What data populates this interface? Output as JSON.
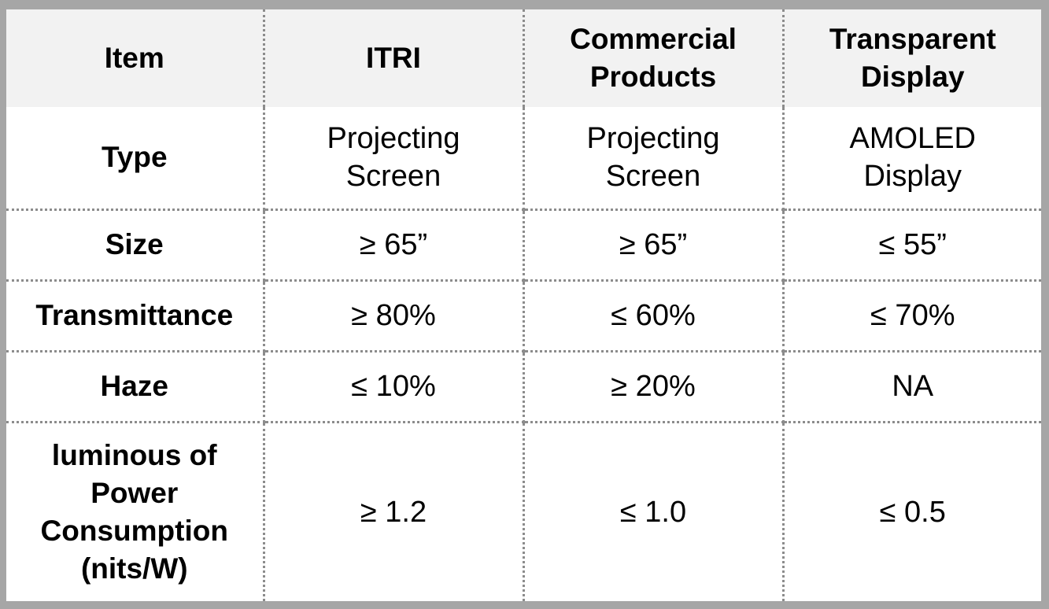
{
  "table": {
    "headers": [
      "Item",
      "ITRI",
      "Commercial\nProducts",
      "Transparent\nDisplay"
    ],
    "rows": [
      {
        "item": "Type",
        "itri": "Projecting\nScreen",
        "commercial": "Projecting\nScreen",
        "transparent": "AMOLED\nDisplay"
      },
      {
        "item": "Size",
        "itri": "≥ 65”",
        "commercial": "≥ 65”",
        "transparent": "≤ 55”"
      },
      {
        "item": "Transmittance",
        "itri": "≥ 80%",
        "commercial": "≤ 60%",
        "transparent": "≤ 70%"
      },
      {
        "item": "Haze",
        "itri": "≤ 10%",
        "commercial": "≥ 20%",
        "transparent": "NA"
      },
      {
        "item": "luminous of\nPower\nConsumption\n(nits/W)",
        "itri": "≥ 1.2",
        "commercial": "≤ 1.0",
        "transparent": "≤ 0.5"
      }
    ]
  },
  "colors": {
    "frame": "#a6a6a6",
    "header_background": "#f2f2f2",
    "body_background": "#ffffff",
    "grid_line": "#8c8c8c"
  }
}
